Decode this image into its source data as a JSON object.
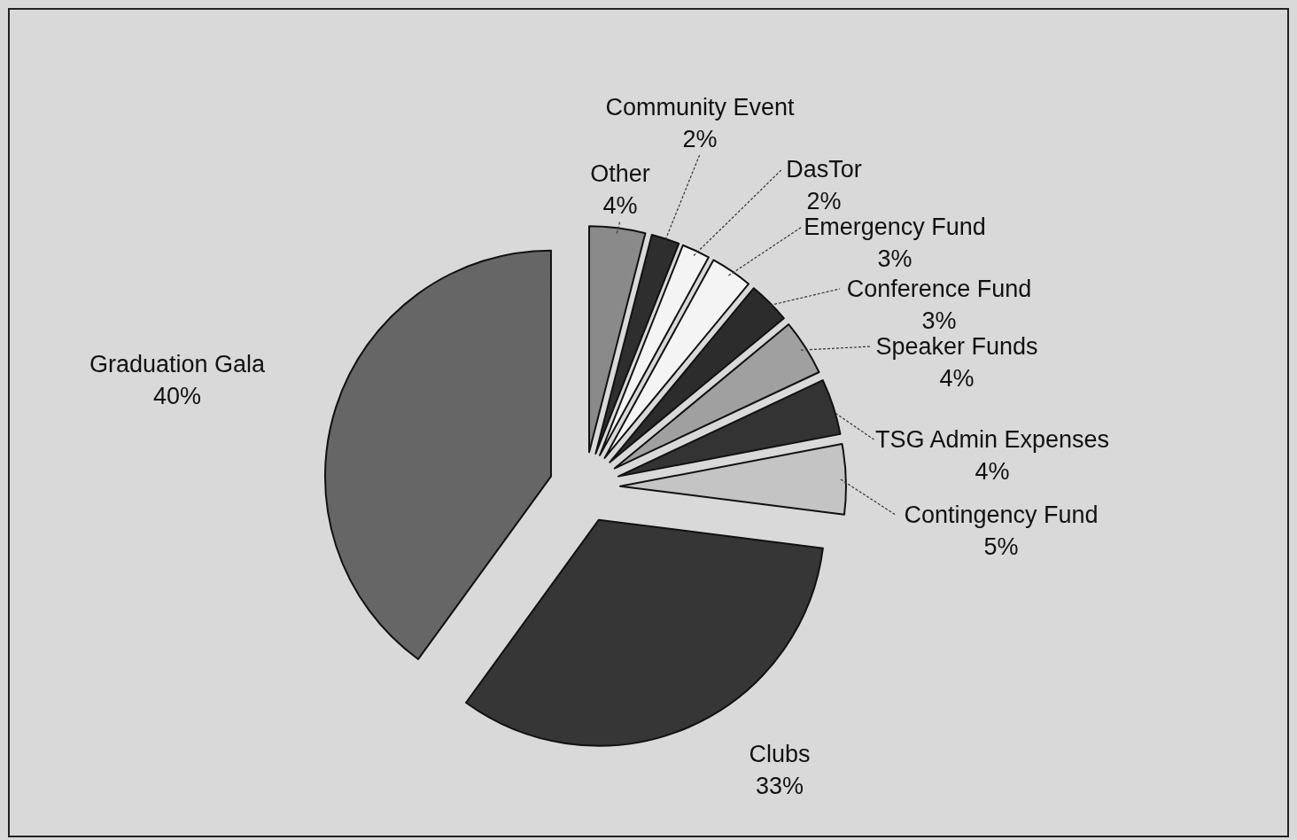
{
  "chart_data": {
    "type": "pie",
    "categories": [
      "Other",
      "Community Event",
      "DasTor",
      "Emergency Fund",
      "Conference Fund",
      "Speaker Funds",
      "TSG Admin Expenses",
      "Contingency Fund",
      "Clubs",
      "Graduation Gala"
    ],
    "values": [
      4,
      2,
      2,
      3,
      3,
      4,
      4,
      5,
      33,
      40
    ],
    "colors": [
      "#8a8a8a",
      "#2e2e2e",
      "#f4f4f4",
      "#f4f4f4",
      "#2c2c2c",
      "#a0a0a0",
      "#333333",
      "#c4c4c4",
      "#363636",
      "#666666"
    ],
    "value_labels": [
      "4%",
      "2%",
      "2%",
      "3%",
      "3%",
      "4%",
      "4%",
      "5%",
      "33%",
      "40%"
    ]
  }
}
